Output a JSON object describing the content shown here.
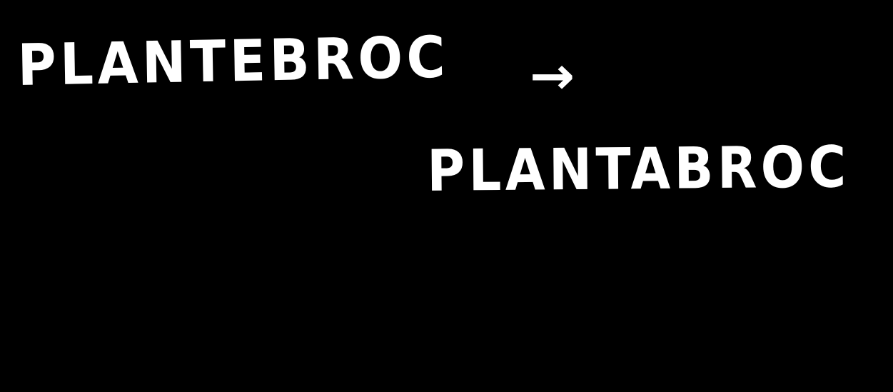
{
  "note": {
    "original_word": "PLANTEBROC",
    "arrow_glyph": "→",
    "corrected_word": "PLANTABROC"
  },
  "colors": {
    "background": "#000000",
    "ink": "#ffffff"
  }
}
